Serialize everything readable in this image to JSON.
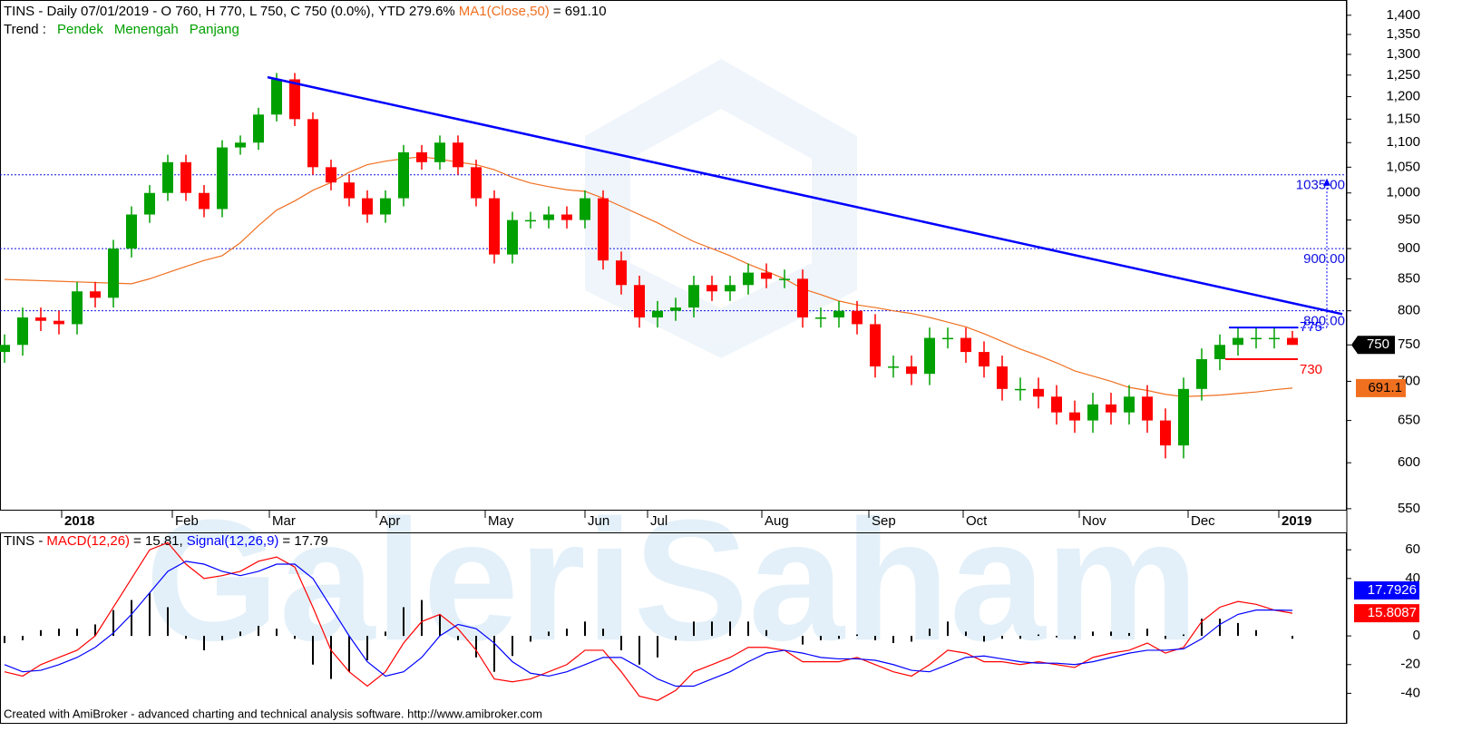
{
  "chart_data": [
    {
      "type": "candlestick",
      "title_parts": [
        {
          "text": "TINS - Daily 07/01/2019 - O 760, H 770, L 750, C 750 (0.0%), YTD 279.6%",
          "color": "#000000"
        },
        {
          "text": "MA1(Close,50)",
          "color": "#f07020"
        },
        {
          "text": "= 691.10",
          "color": "#000000"
        }
      ],
      "trend_parts": [
        {
          "text": "Trend :",
          "color": "#000000"
        },
        {
          "text": "Pendek",
          "color": "#00a000"
        },
        {
          "text": "Menengah",
          "color": "#00a000"
        },
        {
          "text": "Panjang",
          "color": "#00a000"
        }
      ],
      "up_color": "#00a000",
      "down_color": "#ff0000",
      "open": [
        740,
        750,
        790,
        785,
        780,
        830,
        820,
        900,
        960,
        1000,
        1060,
        1000,
        970,
        1090,
        1100,
        1160,
        1240,
        1150,
        1050,
        1020,
        990,
        960,
        990,
        1080,
        1060,
        1100,
        1050,
        990,
        890,
        950,
        950,
        960,
        950,
        990,
        880,
        840,
        790,
        800,
        805,
        840,
        830,
        840,
        860,
        850,
        850,
        790,
        790,
        800,
        780,
        720,
        720,
        710,
        760,
        760,
        740,
        720,
        690,
        690,
        680,
        660,
        650,
        670,
        660,
        680,
        650,
        620,
        690,
        730,
        750,
        760,
        760,
        760
      ],
      "high": [
        765,
        805,
        805,
        800,
        845,
        845,
        915,
        975,
        1015,
        1075,
        1075,
        1015,
        1105,
        1115,
        1175,
        1255,
        1255,
        1165,
        1065,
        1035,
        1005,
        1005,
        1095,
        1095,
        1115,
        1115,
        1065,
        1005,
        965,
        965,
        975,
        975,
        1005,
        1005,
        895,
        855,
        815,
        820,
        855,
        855,
        855,
        875,
        875,
        865,
        865,
        805,
        815,
        815,
        795,
        735,
        735,
        775,
        775,
        775,
        755,
        735,
        705,
        705,
        695,
        675,
        685,
        685,
        695,
        695,
        665,
        705,
        745,
        765,
        775,
        775,
        775,
        770
      ],
      "low": [
        725,
        735,
        770,
        765,
        765,
        805,
        805,
        885,
        945,
        985,
        985,
        955,
        955,
        1075,
        1085,
        1145,
        1135,
        1035,
        1005,
        975,
        945,
        945,
        975,
        1045,
        1045,
        1035,
        975,
        875,
        875,
        935,
        935,
        935,
        935,
        865,
        825,
        775,
        775,
        785,
        790,
        815,
        815,
        825,
        835,
        835,
        775,
        775,
        775,
        765,
        705,
        705,
        695,
        695,
        745,
        725,
        705,
        675,
        675,
        665,
        645,
        635,
        635,
        645,
        645,
        635,
        605,
        605,
        675,
        715,
        735,
        745,
        745,
        750
      ],
      "close": [
        750,
        790,
        785,
        780,
        830,
        820,
        900,
        960,
        1000,
        1060,
        1000,
        970,
        1090,
        1100,
        1160,
        1240,
        1150,
        1050,
        1020,
        990,
        960,
        990,
        1080,
        1060,
        1100,
        1050,
        990,
        890,
        950,
        950,
        960,
        950,
        990,
        880,
        840,
        790,
        800,
        805,
        840,
        830,
        840,
        860,
        850,
        850,
        790,
        790,
        800,
        780,
        720,
        720,
        710,
        760,
        760,
        740,
        720,
        690,
        690,
        680,
        660,
        650,
        670,
        660,
        680,
        650,
        620,
        690,
        730,
        750,
        760,
        760,
        760,
        750
      ],
      "ma": {
        "name": "MA1(Close,50)",
        "color": "#f07020",
        "values": [
          849,
          848,
          847,
          846,
          845,
          844,
          843,
          842,
          850,
          860,
          870,
          880,
          888,
          910,
          940,
          968,
          985,
          1005,
          1020,
          1040,
          1055,
          1062,
          1067,
          1071,
          1066,
          1060,
          1055,
          1045,
          1030,
          1019,
          1012,
          1006,
          1003,
          990,
          975,
          960,
          945,
          928,
          912,
          900,
          888,
          874,
          862,
          850,
          834,
          825,
          815,
          809,
          805,
          800,
          796,
          790,
          783,
          776,
          766,
          755,
          744,
          735,
          725,
          714,
          707,
          700,
          692,
          688,
          683,
          680,
          681,
          682,
          684,
          686,
          689,
          691.1
        ]
      },
      "xlim": [
        -0.25,
        73.75
      ],
      "ylim": [
        548,
        1441
      ],
      "log_scale": true,
      "yticks": [
        550,
        600,
        650,
        700,
        750,
        800,
        850,
        900,
        950,
        {
          "value": 1000,
          "label": "1,000"
        },
        {
          "value": 1050,
          "label": "1,050"
        },
        {
          "value": 1100,
          "label": "1,100"
        },
        {
          "value": 1150,
          "label": "1,150"
        },
        {
          "value": 1200,
          "label": "1,200"
        },
        {
          "value": 1250,
          "label": "1,250"
        },
        {
          "value": 1300,
          "label": "1,300"
        },
        {
          "value": 1350,
          "label": "1,350"
        },
        {
          "value": 1400,
          "label": "1,400"
        }
      ],
      "xticks": [
        {
          "value": 3.15,
          "label": "2018"
        },
        {
          "value": 9.25,
          "label": "Feb"
        },
        {
          "value": 14.6,
          "label": "Mar"
        },
        {
          "value": 20.5,
          "label": "Apr"
        },
        {
          "value": 26.5,
          "label": "May"
        },
        {
          "value": 32,
          "label": "Jun"
        },
        {
          "value": 35.45,
          "label": "Jul"
        },
        {
          "value": 41.75,
          "label": "Aug"
        },
        {
          "value": 47.65,
          "label": "Sep"
        },
        {
          "value": 52.85,
          "label": "Oct"
        },
        {
          "value": 59.25,
          "label": "Nov"
        },
        {
          "value": 65.25,
          "label": "Dec"
        },
        {
          "value": 70.25,
          "label": "2019"
        }
      ],
      "hlines": [
        {
          "value": 1035,
          "label": "1035.00"
        },
        {
          "value": 900,
          "label": "900.00"
        },
        {
          "value": 800,
          "label": "800.00"
        }
      ],
      "hline_color": "#1010e0",
      "trendline": {
        "x": [
          14.5,
          73.75
        ],
        "y": [
          1245,
          795
        ],
        "color": "#0000ff"
      },
      "levels": [
        {
          "value": 775,
          "label": "775",
          "color": "#0000ff",
          "x": [
            67.5,
            71.3
          ]
        },
        {
          "value": 730,
          "label": "730",
          "color": "#ff0000",
          "x": [
            67.3,
            71.3
          ]
        }
      ],
      "last_price": 750,
      "ma_last": 691.1
    },
    {
      "type": "macd",
      "title_prefix": "TINS -",
      "series": [
        {
          "name": "MACD(12,26)",
          "readout": "= 15.81,",
          "color": "#ff0000",
          "box_label": "15.8087",
          "values": [
            -25,
            -28,
            -20,
            -15,
            -10,
            0,
            20,
            40,
            60,
            65,
            50,
            40,
            42,
            45,
            52,
            55,
            48,
            20,
            -10,
            -25,
            -35,
            -25,
            -5,
            10,
            15,
            5,
            -10,
            -30,
            -32,
            -30,
            -25,
            -20,
            -10,
            -10,
            -25,
            -42,
            -45,
            -38,
            -25,
            -20,
            -15,
            -8,
            -8,
            -10,
            -18,
            -18,
            -18,
            -15,
            -20,
            -25,
            -28,
            -20,
            -10,
            -12,
            -18,
            -18,
            -20,
            -18,
            -20,
            -22,
            -15,
            -12,
            -10,
            -5,
            -12,
            -8,
            10,
            20,
            24,
            22,
            18,
            15.81
          ]
        },
        {
          "name": "Signal(12,26,9)",
          "readout": "= 17.79",
          "color": "#0000ff",
          "box_label": "17.7926",
          "values": [
            -20,
            -25,
            -24,
            -20,
            -15,
            -8,
            2,
            15,
            30,
            45,
            52,
            50,
            45,
            42,
            45,
            50,
            50,
            40,
            20,
            0,
            -18,
            -28,
            -25,
            -15,
            0,
            8,
            5,
            -5,
            -18,
            -26,
            -28,
            -25,
            -20,
            -15,
            -15,
            -22,
            -30,
            -35,
            -35,
            -30,
            -25,
            -18,
            -12,
            -10,
            -12,
            -15,
            -16,
            -16,
            -17,
            -20,
            -24,
            -25,
            -20,
            -15,
            -14,
            -16,
            -18,
            -19,
            -19,
            -20,
            -18,
            -15,
            -12,
            -10,
            -10,
            -9,
            -2,
            8,
            15,
            18,
            18,
            17.79
          ]
        }
      ],
      "histogram": {
        "color": "#000000",
        "values": [
          -5,
          -3,
          4,
          5,
          5,
          8,
          18,
          25,
          30,
          20,
          -2,
          -10,
          -3,
          3,
          7,
          5,
          -2,
          -20,
          -30,
          -25,
          -17,
          3,
          20,
          25,
          15,
          -3,
          -15,
          -25,
          -14,
          -4,
          3,
          5,
          10,
          5,
          -10,
          -20,
          -15,
          -3,
          10,
          10,
          10,
          10,
          4,
          0,
          -6,
          -3,
          -2,
          1,
          -3,
          -5,
          -4,
          5,
          10,
          3,
          -4,
          -2,
          -2,
          1,
          -1,
          -2,
          3,
          3,
          2,
          5,
          -2,
          1,
          12,
          12,
          9,
          4,
          0,
          -1.98
        ]
      },
      "xlim": [
        -0.25,
        73.75
      ],
      "ylim": [
        -60.6,
        71.5
      ],
      "yticks": [
        -40,
        -20,
        0,
        40,
        60
      ]
    }
  ],
  "watermark": "GaleriSaham",
  "footer": "Created with AmiBroker - advanced charting and technical analysis software. http://www.amibroker.com"
}
